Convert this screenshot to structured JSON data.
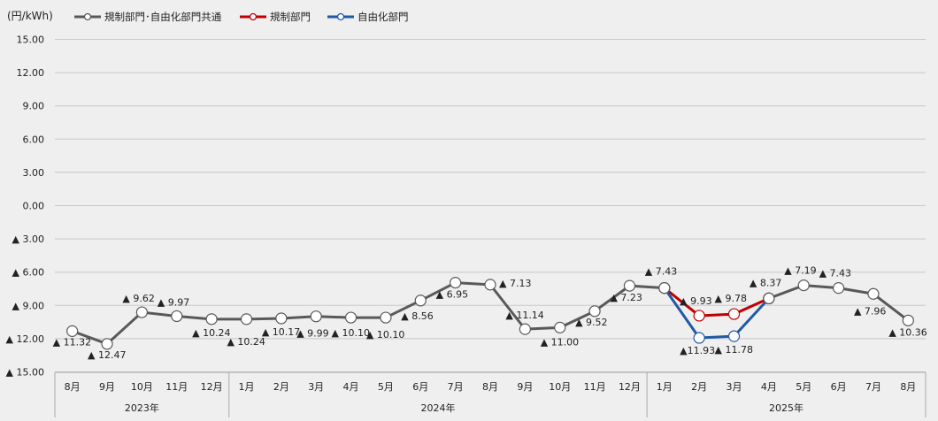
{
  "chart_data": {
    "type": "line",
    "unit_label": "(円/kWh)",
    "y_ticks": [
      "15.00",
      "12.00",
      "9.00",
      "6.00",
      "3.00",
      "0.00",
      "▲ 3.00",
      "▲ 6.00",
      "▲ 9.00",
      "▲ 12.00",
      "▲ 15.00"
    ],
    "ylim": [
      -15,
      15
    ],
    "grid": true,
    "legend_position": "top-left",
    "categories": [
      "8月",
      "9月",
      "10月",
      "11月",
      "12月",
      "1月",
      "2月",
      "3月",
      "4月",
      "5月",
      "6月",
      "7月",
      "8月",
      "9月",
      "10月",
      "11月",
      "12月",
      "1月",
      "2月",
      "3月",
      "4月",
      "5月",
      "6月",
      "7月",
      "8月"
    ],
    "years": [
      {
        "label": "2023年",
        "start": 0,
        "end": 4
      },
      {
        "label": "2024年",
        "start": 5,
        "end": 16
      },
      {
        "label": "2025年",
        "start": 17,
        "end": 24
      }
    ],
    "series": [
      {
        "name": "規制部門･自由化部門共通",
        "color": "#595959",
        "start_index": 0,
        "values": [
          -11.32,
          -12.47,
          -9.62,
          -9.97,
          -10.24,
          -10.24,
          -10.17,
          -9.99,
          -10.1,
          -10.1,
          -8.56,
          -6.95,
          -7.13,
          -11.14,
          -11.0,
          -9.52,
          -7.23,
          -7.43,
          null,
          null,
          -8.37,
          -7.19,
          -7.43,
          -7.96,
          -10.36
        ],
        "labels": [
          "▲ 11.32",
          "▲ 12.47",
          "▲ 9.62",
          "▲ 9.97",
          "▲ 10.24",
          "▲ 10.24",
          "▲ 10.17",
          "▲ 9.99",
          "▲ 10.10",
          "▲ 10.10",
          "▲ 8.56",
          "▲ 6.95",
          "▲ 7.13",
          "▲ 11.14",
          "▲ 11.00",
          "▲ 9.52",
          "▲ 7.23",
          "▲ 7.43",
          "",
          "",
          "▲ 8.37",
          "▲ 7.19",
          "▲ 7.43",
          "▲ 7.96",
          "▲ 10.36"
        ]
      },
      {
        "name": "規制部門",
        "color": "#c00000",
        "values": [
          null,
          null,
          null,
          null,
          null,
          null,
          null,
          null,
          null,
          null,
          null,
          null,
          null,
          null,
          null,
          null,
          null,
          -7.43,
          -9.93,
          -9.78,
          -8.37,
          null,
          null,
          null,
          null
        ],
        "labels": [
          "",
          "",
          "",
          "",
          "",
          "",
          "",
          "",
          "",
          "",
          "",
          "",
          "",
          "",
          "",
          "",
          "",
          "",
          "▲ 9.93",
          "▲ 9.78",
          "",
          "",
          "",
          "",
          ""
        ]
      },
      {
        "name": "自由化部門",
        "color": "#1f5aa6",
        "values": [
          null,
          null,
          null,
          null,
          null,
          null,
          null,
          null,
          null,
          null,
          null,
          null,
          null,
          null,
          null,
          null,
          null,
          -7.43,
          -11.93,
          -11.78,
          -8.37,
          null,
          null,
          null,
          null
        ],
        "labels": [
          "",
          "",
          "",
          "",
          "",
          "",
          "",
          "",
          "",
          "",
          "",
          "",
          "",
          "",
          "",
          "",
          "",
          "",
          "▲11.93",
          "▲ 11.78",
          "",
          "",
          "",
          "",
          ""
        ]
      }
    ]
  }
}
